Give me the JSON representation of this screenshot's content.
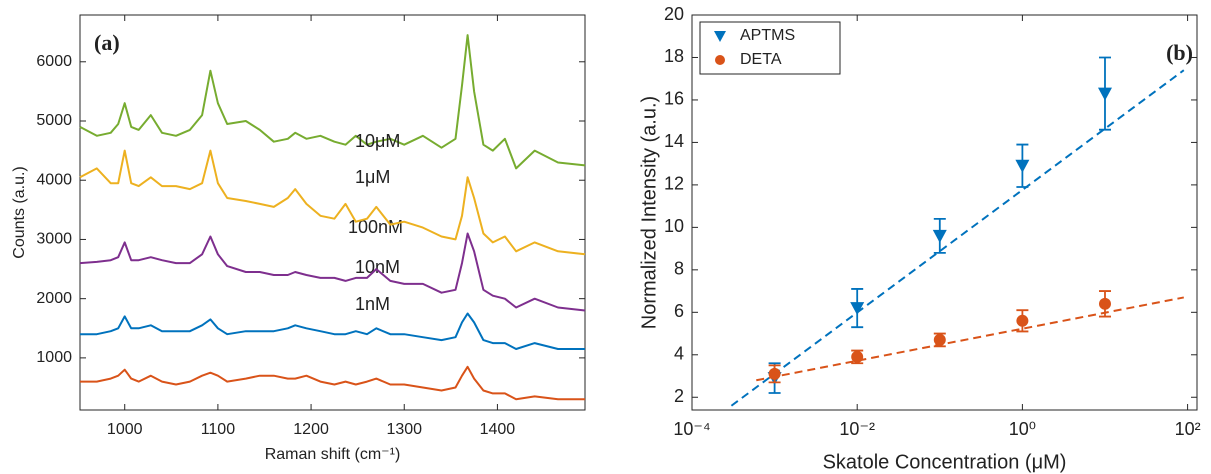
{
  "chart_data": [
    {
      "type": "line",
      "panel_label": "(a)",
      "xlabel": "Raman shift (cm⁻¹)",
      "ylabel": "Counts (a.u.)",
      "xlim": [
        952,
        1494
      ],
      "ylim": [
        120,
        6790
      ],
      "xticks": [
        1000,
        1100,
        1200,
        1300,
        1400
      ],
      "yticks": [
        1000,
        2000,
        3000,
        4000,
        5000,
        6000
      ],
      "x": [
        952,
        970,
        985,
        993,
        1000,
        1007,
        1015,
        1028,
        1040,
        1055,
        1070,
        1083,
        1092,
        1100,
        1110,
        1130,
        1145,
        1160,
        1175,
        1183,
        1195,
        1210,
        1225,
        1237,
        1248,
        1260,
        1270,
        1285,
        1300,
        1320,
        1340,
        1355,
        1362,
        1368,
        1375,
        1385,
        1395,
        1408,
        1420,
        1440,
        1465,
        1494
      ],
      "series": [
        {
          "name": "1nM",
          "color": "#d95319",
          "values": [
            600,
            600,
            650,
            700,
            800,
            650,
            600,
            700,
            600,
            550,
            600,
            700,
            750,
            700,
            600,
            650,
            700,
            700,
            650,
            650,
            700,
            600,
            550,
            600,
            550,
            600,
            650,
            550,
            550,
            500,
            450,
            500,
            700,
            850,
            650,
            450,
            400,
            400,
            300,
            350,
            300,
            300
          ]
        },
        {
          "name": "10nM",
          "color": "#0072bd",
          "values": [
            1400,
            1400,
            1450,
            1500,
            1700,
            1500,
            1500,
            1550,
            1450,
            1450,
            1450,
            1550,
            1650,
            1500,
            1400,
            1450,
            1450,
            1450,
            1500,
            1550,
            1500,
            1450,
            1400,
            1400,
            1450,
            1400,
            1500,
            1400,
            1400,
            1350,
            1300,
            1350,
            1600,
            1750,
            1600,
            1300,
            1250,
            1250,
            1150,
            1250,
            1150,
            1150
          ]
        },
        {
          "name": "100nM",
          "color": "#7e2f8e",
          "values": [
            2600,
            2620,
            2650,
            2700,
            2950,
            2650,
            2650,
            2700,
            2650,
            2600,
            2600,
            2750,
            3050,
            2750,
            2550,
            2450,
            2450,
            2400,
            2400,
            2450,
            2400,
            2350,
            2350,
            2300,
            2350,
            2350,
            2500,
            2300,
            2250,
            2250,
            2100,
            2150,
            2600,
            3100,
            2800,
            2150,
            2050,
            2000,
            1850,
            2000,
            1850,
            1800
          ]
        },
        {
          "name": "1μM",
          "color": "#edb120",
          "values": [
            4050,
            4200,
            3950,
            3950,
            4500,
            3950,
            3900,
            4050,
            3900,
            3900,
            3850,
            3950,
            4500,
            3950,
            3700,
            3650,
            3600,
            3550,
            3700,
            3850,
            3600,
            3400,
            3350,
            3600,
            3300,
            3350,
            3550,
            3250,
            3300,
            3200,
            3050,
            3000,
            3400,
            4050,
            3700,
            3100,
            2950,
            3050,
            2800,
            2950,
            2800,
            2750
          ]
        },
        {
          "name": "10μM",
          "color": "#77ac30",
          "values": [
            4900,
            4750,
            4800,
            4950,
            5300,
            4900,
            4850,
            5100,
            4800,
            4750,
            4850,
            5100,
            5850,
            5300,
            4950,
            5000,
            4850,
            4650,
            4700,
            4800,
            4700,
            4750,
            4650,
            4600,
            4750,
            4600,
            4650,
            4700,
            4600,
            4750,
            4550,
            4700,
            5600,
            6450,
            5500,
            4600,
            4500,
            4700,
            4200,
            4500,
            4300,
            4250
          ]
        }
      ]
    },
    {
      "type": "scatter",
      "panel_label": "(b)",
      "xlabel": "Skatole Concentration (μM)",
      "ylabel": "Normalized Intensity (a.u.)",
      "xscale": "log",
      "xlim": [
        0.0001,
        130
      ],
      "ylim": [
        1.4,
        20
      ],
      "xticks": [
        {
          "value": 0.0001,
          "label": "10⁻⁴"
        },
        {
          "value": 0.01,
          "label": "10⁻²"
        },
        {
          "value": 1,
          "label": "10⁰"
        },
        {
          "value": 100,
          "label": "10²"
        }
      ],
      "yticks": [
        2,
        4,
        6,
        8,
        10,
        12,
        14,
        16,
        18,
        20
      ],
      "legend": "upper left",
      "x": [
        0.001,
        0.01,
        0.1,
        1,
        10
      ],
      "series": [
        {
          "name": "APTMS",
          "color": "#0072bd",
          "marker": "triangle",
          "values": [
            2.9,
            6.2,
            9.6,
            12.9,
            16.3
          ],
          "errors": [
            0.7,
            0.9,
            0.8,
            1.0,
            1.7
          ],
          "fit": {
            "x": [
              0.0003,
              90
            ],
            "values": [
              1.6,
              17.4
            ]
          }
        },
        {
          "name": "DETA",
          "color": "#d95319",
          "marker": "circle",
          "values": [
            3.1,
            3.9,
            4.7,
            5.6,
            6.4
          ],
          "errors": [
            0.4,
            0.3,
            0.3,
            0.5,
            0.6
          ],
          "fit": {
            "x": [
              0.0006,
              90
            ],
            "values": [
              2.8,
              6.7
            ]
          }
        }
      ]
    }
  ]
}
